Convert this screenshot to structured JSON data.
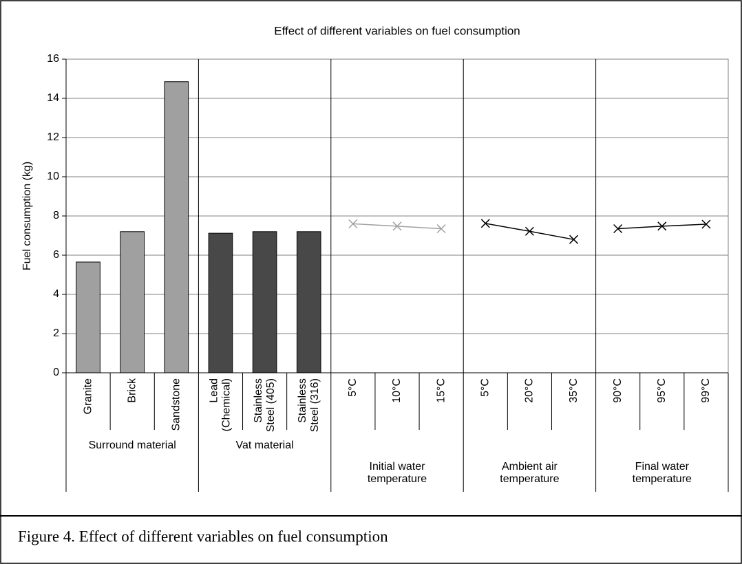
{
  "chart_data": {
    "type": "combo",
    "title": "Effect of different variables on fuel consumption",
    "ylabel": "Fuel consumption (kg)",
    "ylim": [
      0,
      16
    ],
    "yticks": [
      0,
      2,
      4,
      6,
      8,
      10,
      12,
      14,
      16
    ],
    "grid": true,
    "groups": [
      {
        "name": "Surround material",
        "type": "bar",
        "color": "#a0a0a0",
        "categories": [
          "Granite",
          "Brick",
          "Sandstone"
        ],
        "values": [
          5.65,
          7.2,
          14.85
        ]
      },
      {
        "name": "Vat material",
        "type": "bar",
        "color": "#484848",
        "categories": [
          [
            "Lead",
            "(Chemical)"
          ],
          [
            "Stainless",
            "Steel (405)"
          ],
          [
            "Stainless",
            "Steel (316)"
          ]
        ],
        "values": [
          7.12,
          7.2,
          7.2
        ]
      },
      {
        "name": [
          "Initial water",
          "temperature"
        ],
        "type": "line",
        "color": "#a0a0a0",
        "categories": [
          "5°C",
          "10°C",
          "15°C"
        ],
        "values": [
          7.6,
          7.48,
          7.35
        ]
      },
      {
        "name": [
          "Ambient air",
          "temperature"
        ],
        "type": "line",
        "color": "#000000",
        "categories": [
          "5°C",
          "20°C",
          "35°C"
        ],
        "values": [
          7.62,
          7.22,
          6.8
        ]
      },
      {
        "name": [
          "Final water",
          "temperature"
        ],
        "type": "line",
        "color": "#000000",
        "categories": [
          "90°C",
          "95°C",
          "99°C"
        ],
        "values": [
          7.35,
          7.48,
          7.58
        ]
      }
    ]
  },
  "caption": "Figure 4. Effect of different variables on fuel consumption"
}
